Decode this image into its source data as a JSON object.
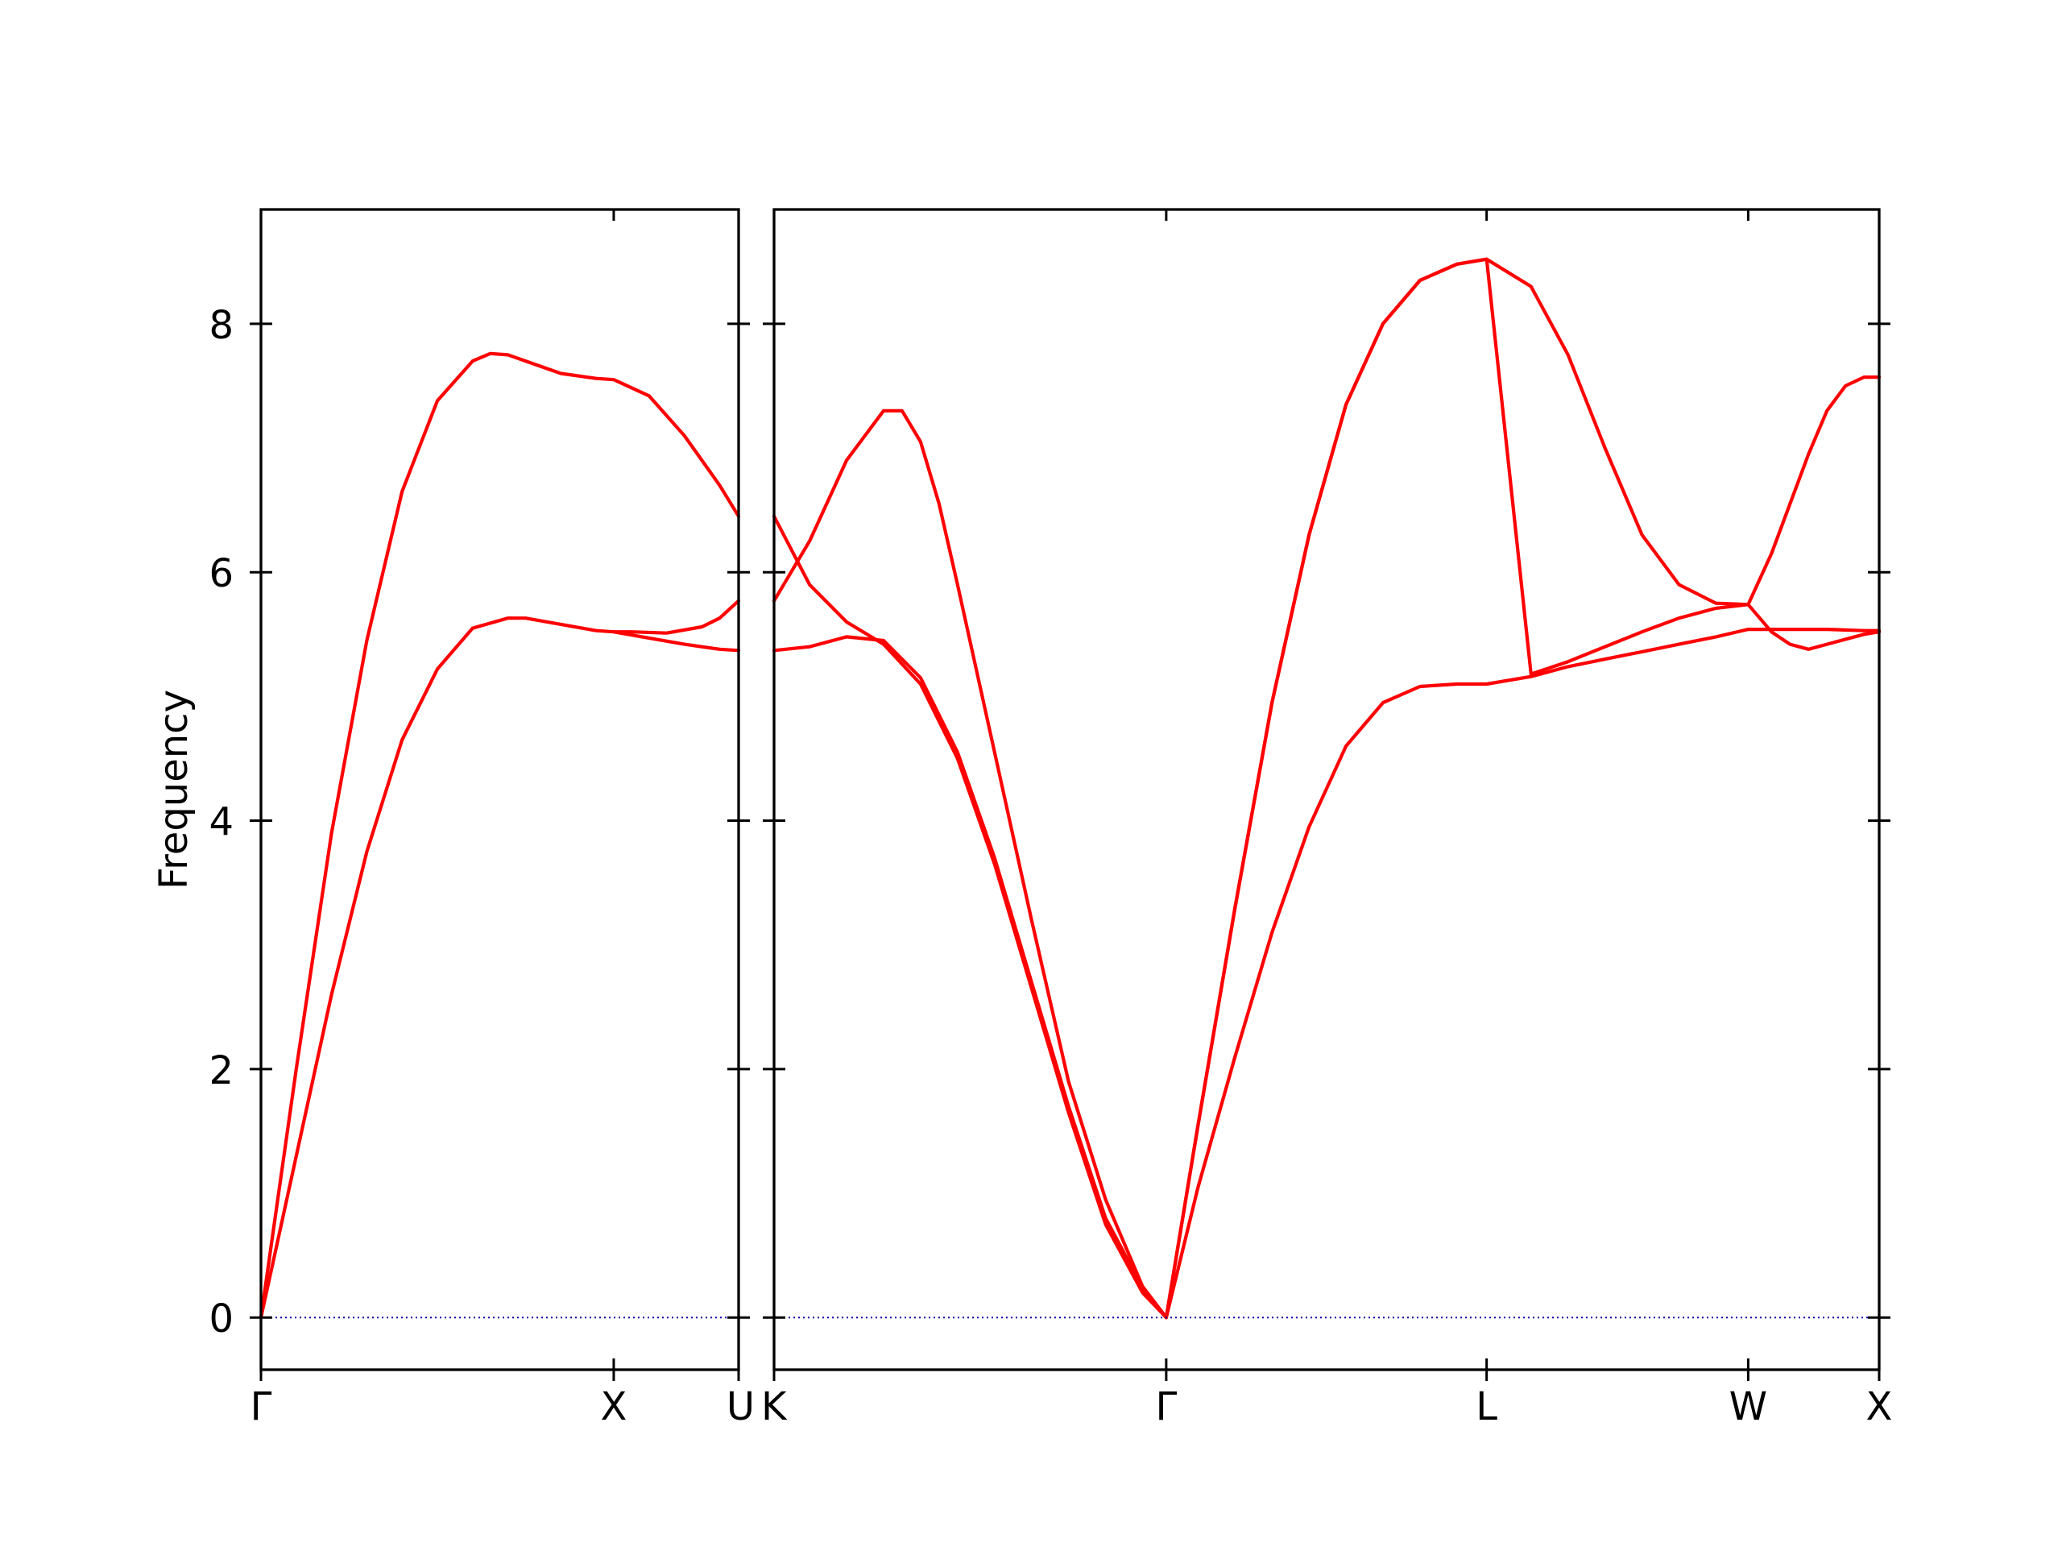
{
  "chart_data": {
    "type": "line",
    "ylabel": "Frequency",
    "ylim": [
      -0.42,
      8.92
    ],
    "yticks": [
      0,
      2,
      4,
      6,
      8
    ],
    "colors": {
      "bands": "#ff0000",
      "zero_line": "#0000aa",
      "axes": "#000000"
    },
    "grid": false,
    "legend": "none",
    "panels": [
      {
        "labels": [
          "Γ",
          "X",
          "U"
        ],
        "label_positions": [
          0,
          1,
          1.354
        ],
        "xlim": [
          0,
          1.354
        ],
        "series": [
          {
            "x": [
              0,
              0.1,
              0.2,
              0.3,
              0.4,
              0.5,
              0.6,
              0.7,
              0.75,
              0.85,
              0.95,
              1.0,
              1.1,
              1.2,
              1.3,
              1.354
            ],
            "y": [
              0,
              1.3,
              2.6,
              3.75,
              4.65,
              5.22,
              5.55,
              5.63,
              5.63,
              5.58,
              5.53,
              5.52,
              5.47,
              5.42,
              5.38,
              5.37
            ]
          },
          {
            "x": [
              0,
              0.1,
              0.2,
              0.3,
              0.4,
              0.5,
              0.6,
              0.65,
              0.7,
              0.75,
              0.85,
              0.95,
              1.0,
              1.1,
              1.2,
              1.3,
              1.354
            ],
            "y": [
              0,
              2.0,
              3.9,
              5.45,
              6.65,
              7.38,
              7.7,
              7.76,
              7.75,
              7.7,
              7.6,
              7.56,
              7.55,
              7.42,
              7.1,
              6.7,
              6.45
            ]
          },
          {
            "x": [
              1.0,
              1.05,
              1.15,
              1.25,
              1.3,
              1.354
            ],
            "y": [
              5.52,
              5.52,
              5.51,
              5.56,
              5.63,
              5.77
            ]
          }
        ]
      },
      {
        "labels": [
          "K",
          "Γ",
          "L",
          "W",
          "X"
        ],
        "label_positions": [
          1.354,
          2.414,
          3.28,
          3.987,
          4.341
        ],
        "xlim": [
          1.354,
          4.341
        ],
        "series": [
          {
            "x": [
              1.354,
              1.45,
              1.55,
              1.65,
              1.75,
              1.85,
              1.95,
              2.05,
              2.15,
              2.25,
              2.35,
              2.414
            ],
            "y": [
              5.37,
              5.4,
              5.48,
              5.45,
              5.15,
              4.55,
              3.7,
              2.7,
              1.7,
              0.8,
              0.24,
              0
            ]
          },
          {
            "x": [
              1.354,
              1.45,
              1.55,
              1.65,
              1.75,
              1.85,
              1.95,
              2.05,
              2.15,
              2.25,
              2.35,
              2.414
            ],
            "y": [
              6.45,
              5.9,
              5.6,
              5.42,
              5.1,
              4.5,
              3.65,
              2.65,
              1.65,
              0.75,
              0.2,
              0
            ]
          },
          {
            "x": [
              1.354,
              1.45,
              1.55,
              1.65,
              1.7,
              1.75,
              1.8,
              1.85,
              1.95,
              2.05,
              2.15,
              2.25,
              2.35,
              2.414
            ],
            "y": [
              5.77,
              6.25,
              6.9,
              7.3,
              7.3,
              7.05,
              6.55,
              5.9,
              4.55,
              3.2,
              1.9,
              0.95,
              0.25,
              0
            ]
          },
          {
            "x": [
              2.414,
              2.5,
              2.6,
              2.7,
              2.8,
              2.9,
              3.0,
              3.1,
              3.2,
              3.28,
              3.4,
              3.5,
              3.6,
              3.7,
              3.8,
              3.9,
              3.987,
              4.05,
              4.1,
              4.15,
              4.2,
              4.3,
              4.341
            ],
            "y": [
              0,
              1.05,
              2.1,
              3.1,
              3.95,
              4.6,
              4.95,
              5.08,
              5.1,
              5.1,
              5.16,
              5.24,
              5.3,
              5.36,
              5.42,
              5.48,
              5.54,
              5.54,
              5.54,
              5.54,
              5.54,
              5.53,
              5.53
            ]
          },
          {
            "x": [
              2.414,
              2.5,
              2.6,
              2.7,
              2.8,
              2.9,
              3.0,
              3.1,
              3.2,
              3.28,
              3.4,
              3.5,
              3.6,
              3.7,
              3.8,
              3.9,
              3.987,
              4.05,
              4.1,
              4.15,
              4.2,
              4.3,
              4.341
            ],
            "y": [
              0,
              1.55,
              3.3,
              4.95,
              6.3,
              7.35,
              8.0,
              8.35,
              8.48,
              8.52,
              8.3,
              7.75,
              7.0,
              6.3,
              5.9,
              5.75,
              5.74,
              5.52,
              5.42,
              5.38,
              5.42,
              5.5,
              5.52
            ]
          },
          {
            "x": [
              2.414,
              2.5,
              2.6,
              2.7,
              2.8,
              2.9,
              3.0,
              3.1,
              3.2,
              3.28,
              3.4,
              3.5,
              3.6,
              3.7,
              3.8,
              3.9,
              3.987,
              4.05,
              4.1,
              4.15,
              4.2,
              4.25,
              4.3,
              4.341
            ],
            "y": [
              0,
              1.55,
              3.3,
              4.95,
              6.3,
              7.35,
              8.0,
              8.35,
              8.48,
              8.52,
              5.18,
              5.28,
              5.4,
              5.52,
              5.63,
              5.71,
              5.74,
              6.15,
              6.55,
              6.95,
              7.3,
              7.5,
              7.57,
              7.57
            ]
          }
        ]
      }
    ]
  }
}
